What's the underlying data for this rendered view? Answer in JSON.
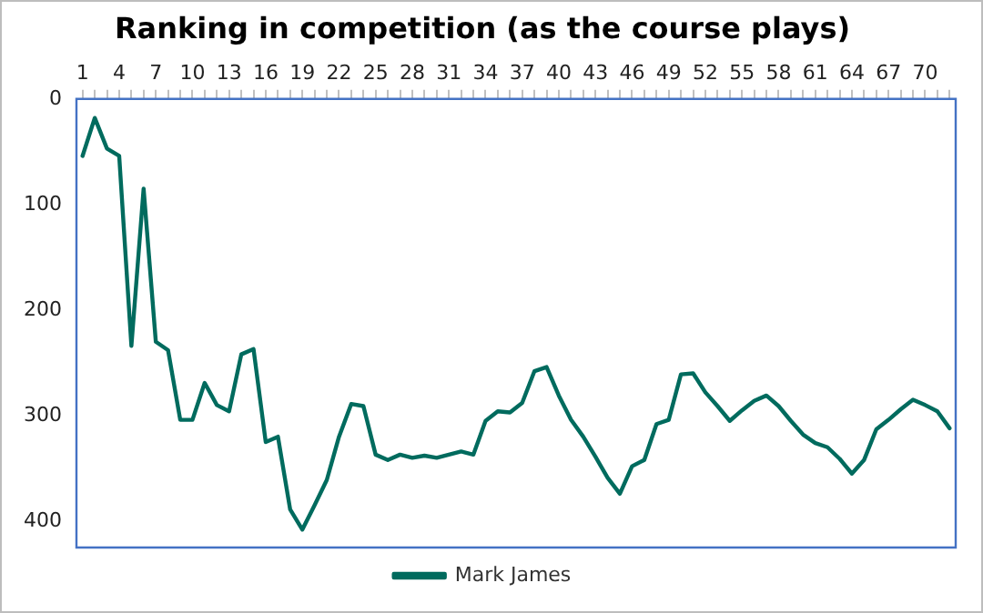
{
  "chart_data": {
    "type": "line",
    "title": "Ranking in competition (as the course plays)",
    "categories": [
      "1",
      null,
      null,
      "4",
      null,
      null,
      "7",
      null,
      null,
      "10",
      null,
      null,
      "13",
      null,
      null,
      "16",
      null,
      null,
      "19",
      null,
      null,
      "22",
      null,
      null,
      "25",
      null,
      null,
      "28",
      null,
      null,
      "31",
      null,
      null,
      "34",
      null,
      null,
      "37",
      null,
      null,
      "40",
      null,
      null,
      "43",
      null,
      null,
      "46",
      null,
      null,
      "49",
      null,
      null,
      "52",
      null,
      null,
      "55",
      null,
      null,
      "58",
      null,
      null,
      "61",
      null,
      null,
      "64",
      null,
      null,
      "67",
      null,
      null,
      "70",
      null,
      null
    ],
    "series": [
      {
        "name": "Mark James",
        "color": "#006b5e",
        "values": [
          54,
          18,
          47,
          54,
          234,
          85,
          230,
          238,
          304,
          304,
          269,
          290,
          296,
          242,
          237,
          325,
          320,
          389,
          408,
          385,
          361,
          320,
          289,
          291,
          337,
          342,
          337,
          340,
          338,
          340,
          337,
          334,
          337,
          305,
          296,
          297,
          288,
          258,
          254,
          281,
          304,
          320,
          339,
          359,
          374,
          348,
          342,
          308,
          304,
          261,
          260,
          278,
          291,
          305,
          295,
          286,
          281,
          291,
          305,
          318,
          326,
          330,
          341,
          355,
          342,
          313,
          304,
          294,
          285,
          290,
          296,
          312
        ]
      }
    ],
    "ylim": [
      425,
      0
    ],
    "yticks": [
      0,
      100,
      200,
      300,
      400
    ],
    "grid": false,
    "legend": "bottom",
    "marker": "none",
    "line_style": "solid"
  }
}
